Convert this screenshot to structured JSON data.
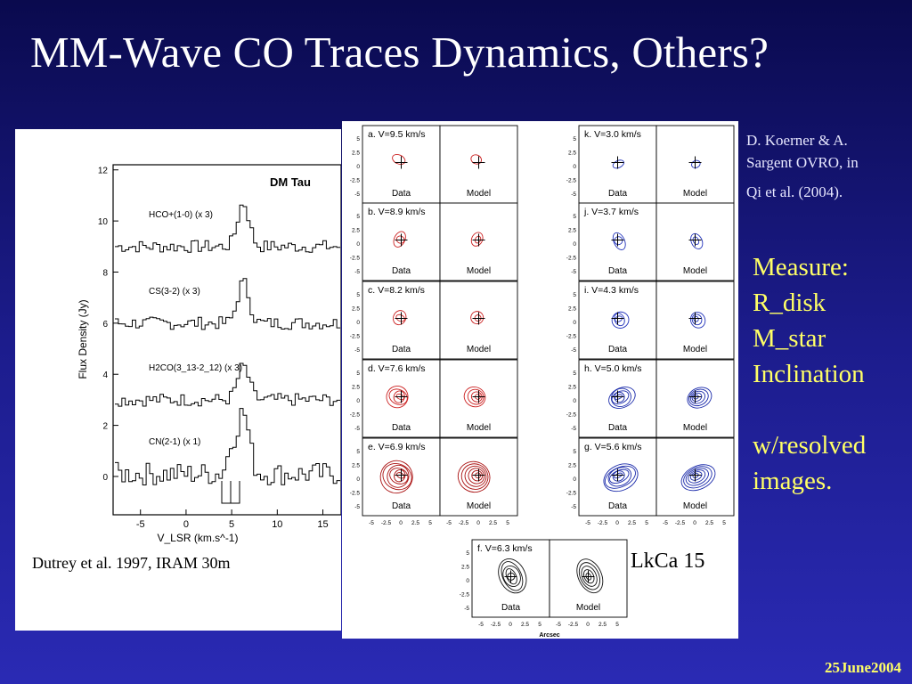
{
  "slide": {
    "title": "MM-Wave CO Traces Dynamics, Others?",
    "credit_left": "Dutrey et al. 1997, IRAM 30m",
    "credit_right": [
      "D. Koerner & A.",
      "Sargent OVRO, in",
      "Qi et al. (2004)."
    ],
    "measure": [
      "Measure:",
      "R_disk",
      "M_star",
      "Inclination",
      "w/resolved",
      "images."
    ],
    "lkca_label": "LkCa 15",
    "date": "25June2004"
  },
  "spectra_plot": {
    "source_label": "DM Tau",
    "x_ticks": [
      "-5",
      "0",
      "5",
      "10",
      "15"
    ],
    "y_ticks": [
      "0",
      "2",
      "4",
      "6",
      "8",
      "10",
      "12"
    ],
    "xlabel": "V_LSR (km.s^-1)",
    "ylabel": "Flux Density (Jy)",
    "lines": [
      {
        "label": "HCO+(1-0) (x 3)",
        "baseline": 9.0,
        "peak": 10.7
      },
      {
        "label": "CS(3-2) (x 3)",
        "baseline": 6.0,
        "peak": 7.6
      },
      {
        "label": "H2CO(3_13-2_12) (x 3)",
        "baseline": 3.0,
        "peak": 4.3
      },
      {
        "label": "CN(2-1) (x 1)",
        "baseline": 0.1,
        "peak": 2.5
      }
    ]
  },
  "channel_maps": {
    "panels": [
      {
        "label": "a. V=9.5 km/s",
        "color": "#cc2222"
      },
      {
        "label": "b. V=8.9 km/s",
        "color": "#cc2222"
      },
      {
        "label": "c. V=8.2 km/s",
        "color": "#cc2222"
      },
      {
        "label": "d. V=7.6 km/s",
        "color": "#cc2222"
      },
      {
        "label": "e. V=6.9 km/s",
        "color": "#aa1111"
      },
      {
        "label": "k. V=3.0 km/s",
        "color": "#2233bb"
      },
      {
        "label": "j. V=3.7 km/s",
        "color": "#2233bb"
      },
      {
        "label": "i. V=4.3 km/s",
        "color": "#2233bb"
      },
      {
        "label": "h. V=5.0 km/s",
        "color": "#1a2aaa"
      },
      {
        "label": "g. V=5.6 km/s",
        "color": "#1a2aaa"
      },
      {
        "label": "f. V=6.3 km/s",
        "color": "#111111"
      }
    ],
    "data_label": "Data",
    "model_label": "Model",
    "y_ticks": [
      "5",
      "2.5",
      "0",
      "-2.5",
      "-5"
    ],
    "x_ticks": [
      "-5",
      "-2.5",
      "0",
      "2.5",
      "5"
    ],
    "xlabel": "Arcsec"
  }
}
